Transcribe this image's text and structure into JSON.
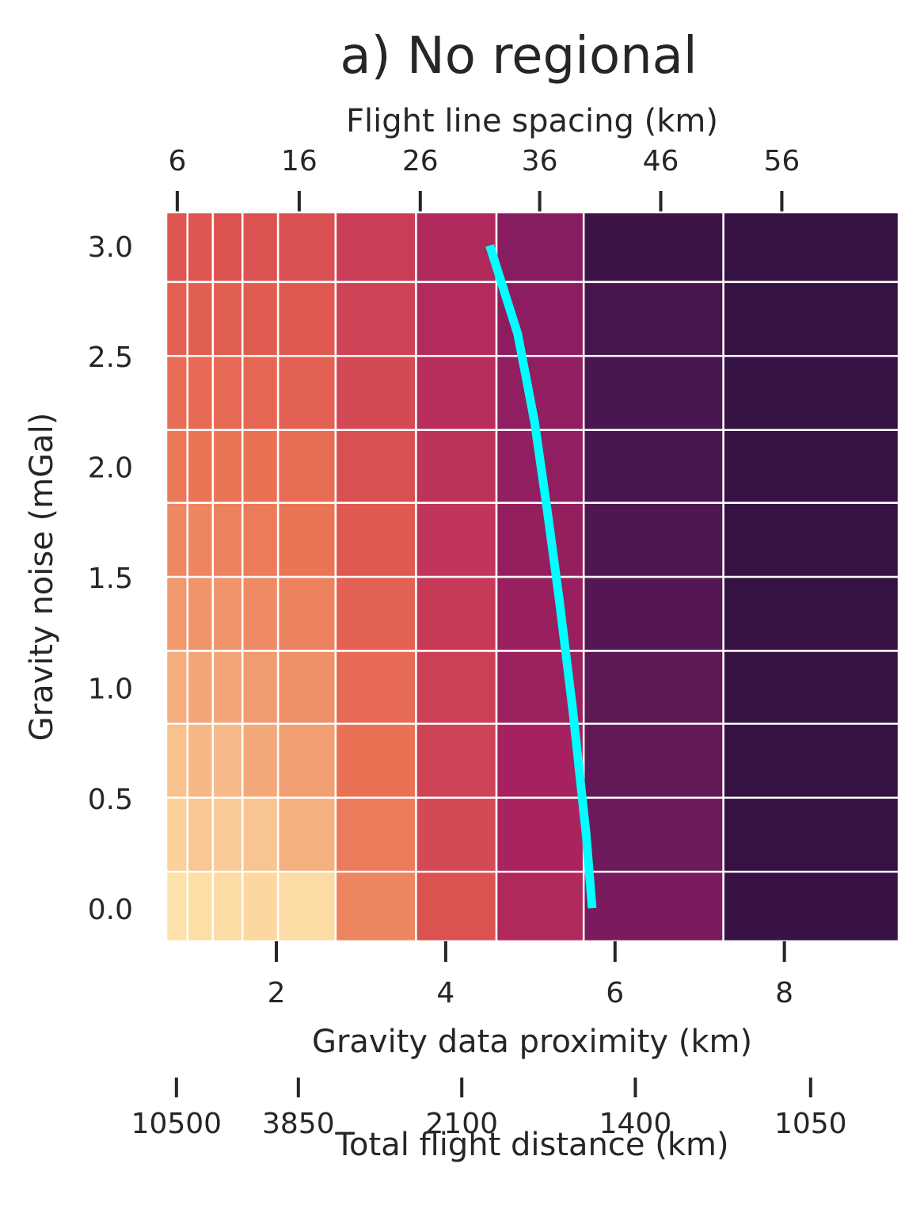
{
  "chart_data": {
    "type": "heatmap",
    "title": "a) No regional",
    "xlabel": "Gravity data proximity (km)",
    "ylabel": "Gravity noise (mGal)",
    "xlim": [
      0.7,
      9.35
    ],
    "ylim": [
      -0.15,
      3.15
    ],
    "x_ticks": [
      2,
      4,
      6,
      8
    ],
    "y_ticks": [
      0.0,
      0.5,
      1.0,
      1.5,
      2.0,
      2.5,
      3.0
    ],
    "y_values": [
      0.0,
      0.33,
      0.67,
      1.0,
      1.33,
      1.67,
      2.0,
      2.33,
      2.67,
      3.0
    ],
    "x_column_edges": [
      0.7,
      0.95,
      1.25,
      1.6,
      2.02,
      2.7,
      3.65,
      4.6,
      5.63,
      7.28,
      9.35
    ],
    "x_axis_top": {
      "label": "Flight line spacing (km)",
      "ticks": [
        {
          "label": "6",
          "x": 0.83
        },
        {
          "label": "16",
          "x": 2.27
        },
        {
          "label": "26",
          "x": 3.7
        },
        {
          "label": "36",
          "x": 5.11
        },
        {
          "label": "46",
          "x": 6.54
        },
        {
          "label": "56",
          "x": 7.97
        }
      ]
    },
    "x_axis_bottom2": {
      "label": "Total flight distance (km)",
      "ticks": [
        {
          "label": "10500",
          "x": 0.82
        },
        {
          "label": "3850",
          "x": 2.26
        },
        {
          "label": "2100",
          "x": 4.19
        },
        {
          "label": "1400",
          "x": 6.24
        },
        {
          "label": "1050",
          "x": 8.31
        }
      ]
    },
    "colorscale": [
      "#2e0f3d",
      "#4a1650",
      "#7a1b60",
      "#a6215f",
      "#c73a57",
      "#df5950",
      "#ea7556",
      "#f0946a",
      "#f6b787",
      "#fcd7a0",
      "#fdedb5"
    ],
    "z": [
      [
        0.95,
        0.93,
        0.92,
        0.9,
        0.92,
        0.65,
        0.48,
        0.33,
        0.2,
        0.04
      ],
      [
        0.88,
        0.85,
        0.86,
        0.84,
        0.78,
        0.62,
        0.45,
        0.31,
        0.17,
        0.03
      ],
      [
        0.83,
        0.8,
        0.81,
        0.76,
        0.73,
        0.59,
        0.43,
        0.3,
        0.15,
        0.03
      ],
      [
        0.77,
        0.75,
        0.75,
        0.72,
        0.69,
        0.56,
        0.42,
        0.28,
        0.14,
        0.03
      ],
      [
        0.71,
        0.7,
        0.7,
        0.67,
        0.64,
        0.53,
        0.4,
        0.27,
        0.12,
        0.03
      ],
      [
        0.66,
        0.65,
        0.64,
        0.62,
        0.6,
        0.5,
        0.38,
        0.26,
        0.11,
        0.03
      ],
      [
        0.61,
        0.6,
        0.6,
        0.59,
        0.57,
        0.47,
        0.37,
        0.25,
        0.1,
        0.03
      ],
      [
        0.57,
        0.56,
        0.56,
        0.55,
        0.53,
        0.45,
        0.35,
        0.25,
        0.1,
        0.03
      ],
      [
        0.53,
        0.52,
        0.52,
        0.51,
        0.5,
        0.43,
        0.34,
        0.24,
        0.09,
        0.03
      ],
      [
        0.49,
        0.49,
        0.48,
        0.48,
        0.47,
        0.41,
        0.33,
        0.23,
        0.05,
        0.03
      ]
    ],
    "line": {
      "color": "#00ffff",
      "points": [
        {
          "x": 5.73,
          "y": 0.0
        },
        {
          "x": 5.66,
          "y": 0.33
        },
        {
          "x": 5.5,
          "y": 0.9
        },
        {
          "x": 5.34,
          "y": 1.4
        },
        {
          "x": 5.2,
          "y": 1.8
        },
        {
          "x": 5.05,
          "y": 2.2
        },
        {
          "x": 4.85,
          "y": 2.6
        },
        {
          "x": 4.52,
          "y": 3.0
        }
      ]
    }
  }
}
